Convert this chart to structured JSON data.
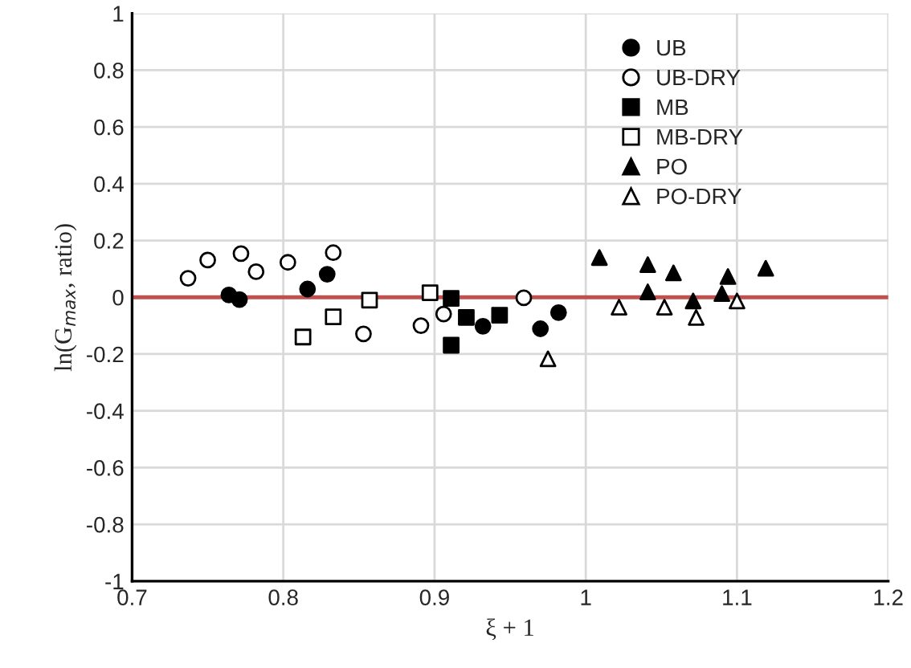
{
  "chart_data": {
    "type": "scatter",
    "xlabel": "ξ + 1",
    "ylabel": "ln(G$_{max}$, ratio)",
    "xlim": [
      0.7,
      1.2
    ],
    "xticks": [
      0.7,
      0.8,
      0.9,
      1,
      1.1,
      1.2
    ],
    "ylim": [
      -1,
      1
    ],
    "yticks": [
      -1,
      -0.8,
      -0.6,
      -0.4,
      -0.2,
      0,
      0.2,
      0.4,
      0.6,
      0.8,
      1
    ],
    "grid": true,
    "legend": "top right",
    "ref_lines": [
      {
        "axis": "y",
        "value": 0,
        "color": "#c0504d",
        "line_style": "solid"
      }
    ],
    "series": [
      {
        "name": "UB",
        "color": "#000000",
        "marker": "circle",
        "x": [
          0.764,
          0.771,
          0.816,
          0.829,
          0.921,
          0.932,
          0.97,
          0.982
        ],
        "values": [
          0.008,
          -0.008,
          0.029,
          0.081,
          null,
          -0.102,
          -0.111,
          -0.054
        ]
      },
      {
        "name": "UB-DRY",
        "color": "#ffffff",
        "marker": "circle",
        "x": [
          0.737,
          0.75,
          0.772,
          0.782,
          0.803,
          0.833,
          0.853,
          0.891,
          0.906,
          0.959
        ],
        "values": [
          0.067,
          0.131,
          0.154,
          0.09,
          0.123,
          0.157,
          -0.129,
          -0.1,
          -0.059,
          -0.002
        ]
      },
      {
        "name": "MB",
        "color": "#000000",
        "marker": "square",
        "x": [
          0.911,
          0.911,
          0.921,
          0.943
        ],
        "values": [
          -0.004,
          -0.169,
          -0.071,
          -0.063
        ]
      },
      {
        "name": "MB-DRY",
        "color": "#ffffff",
        "marker": "square",
        "x": [
          0.813,
          0.833,
          0.857,
          0.897
        ],
        "values": [
          -0.14,
          -0.069,
          -0.01,
          0.016
        ]
      },
      {
        "name": "PO",
        "color": "#000000",
        "marker": "triangle",
        "x": [
          1.009,
          1.041,
          1.058,
          1.041,
          1.071,
          1.094,
          1.09,
          1.119
        ],
        "values": [
          0.14,
          0.115,
          0.086,
          0.019,
          -0.013,
          0.073,
          0.013,
          0.102
        ]
      },
      {
        "name": "PO-DRY",
        "color": "#ffffff",
        "marker": "triangle",
        "x": [
          0.975,
          1.022,
          1.052,
          1.073,
          1.1
        ],
        "values": [
          -0.217,
          -0.035,
          -0.035,
          -0.071,
          -0.013
        ]
      }
    ]
  }
}
